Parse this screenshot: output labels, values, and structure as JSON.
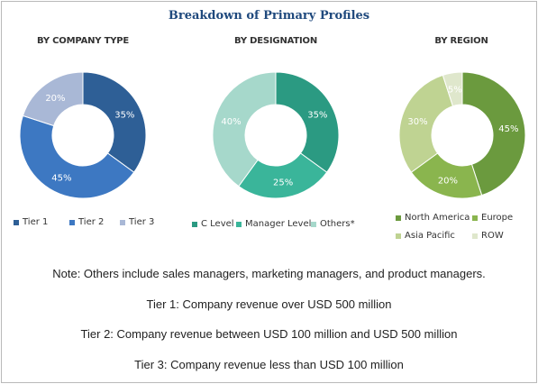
{
  "colors": {
    "title": "#1f497d",
    "company_type": [
      "#2e5f96",
      "#3d78c2",
      "#a9b8d6"
    ],
    "designation": [
      "#2b9a82",
      "#3ab59a",
      "#a6d8cb"
    ],
    "region": [
      "#6b9a3e",
      "#8ab54e",
      "#bfd392",
      "#dfe7cc"
    ]
  },
  "chart_title": "Breakdown of Primary Profiles",
  "chart_data": [
    {
      "type": "pie",
      "title": "BY COMPANY TYPE",
      "categories": [
        "Tier 1",
        "Tier 2",
        "Tier 3"
      ],
      "values": [
        35,
        45,
        20
      ],
      "labels": [
        "35%",
        "45%",
        "20%"
      ],
      "legend_position": "bottom"
    },
    {
      "type": "pie",
      "title": "BY DESIGNATION",
      "categories": [
        "C Level",
        "Manager Level",
        "Others*"
      ],
      "values": [
        35,
        25,
        40
      ],
      "labels": [
        "35%",
        "25%",
        "40%"
      ],
      "legend_position": "bottom"
    },
    {
      "type": "pie",
      "title": "BY REGION",
      "categories": [
        "North America",
        "Europe",
        "Asia Pacific",
        "ROW"
      ],
      "values": [
        45,
        20,
        30,
        5
      ],
      "labels": [
        "45%",
        "20%",
        "30%",
        "5%"
      ],
      "legend_position": "bottom"
    }
  ],
  "notes": [
    "Note: Others include sales managers, marketing managers, and product managers.",
    "Tier 1: Company revenue over USD 500 million",
    "Tier 2: Company revenue between USD 100 million and USD 500 million",
    "Tier 3: Company revenue less than USD 100 million"
  ]
}
